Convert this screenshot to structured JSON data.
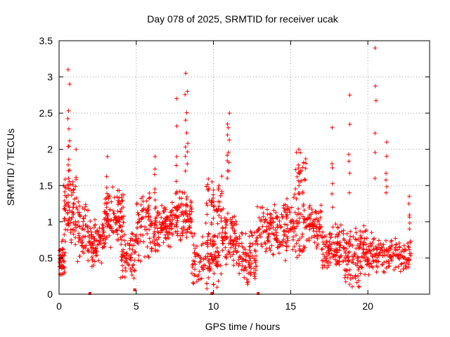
{
  "chart_data": {
    "type": "scatter",
    "title": "Day 078 of 2025, SRMTID for receiver ucak",
    "xlabel": "GPS time / hours",
    "ylabel": "SRMTID / TECUs",
    "xlim": [
      0,
      24
    ],
    "ylim": [
      0,
      3.5
    ],
    "xticks": [
      0,
      5,
      10,
      15,
      20
    ],
    "yticks": [
      0,
      0.5,
      1,
      1.5,
      2,
      2.5,
      3,
      3.5
    ],
    "xtick_labels": [
      "0",
      "5",
      "10",
      "15",
      "20"
    ],
    "ytick_labels": [
      "0",
      "0.5",
      "1",
      "1.5",
      "2",
      "2.5",
      "3",
      "3.5"
    ],
    "grid": true,
    "marker": "plus",
    "color": "#ff0000",
    "series": [
      {
        "name": "SRMTID",
        "description": "dense scatter of epoch values (approximate, generated)",
        "bands": [
          {
            "t0": 0.0,
            "t1": 0.4,
            "lo": 0.2,
            "hi": 0.8,
            "n": 45
          },
          {
            "t0": 0.3,
            "t1": 1.0,
            "lo": 0.6,
            "hi": 1.8,
            "n": 70
          },
          {
            "t0": 1.0,
            "t1": 2.0,
            "lo": 0.4,
            "hi": 1.3,
            "n": 70
          },
          {
            "t0": 2.0,
            "t1": 3.0,
            "lo": 0.3,
            "hi": 1.1,
            "n": 80
          },
          {
            "t0": 2.8,
            "t1": 4.2,
            "lo": 0.6,
            "hi": 1.5,
            "n": 110
          },
          {
            "t0": 4.0,
            "t1": 5.0,
            "lo": 0.2,
            "hi": 0.9,
            "n": 70
          },
          {
            "t0": 5.0,
            "t1": 6.5,
            "lo": 0.4,
            "hi": 1.5,
            "n": 110
          },
          {
            "t0": 6.5,
            "t1": 7.5,
            "lo": 0.6,
            "hi": 1.3,
            "n": 80
          },
          {
            "t0": 7.5,
            "t1": 8.6,
            "lo": 0.7,
            "hi": 1.5,
            "n": 90
          },
          {
            "t0": 8.6,
            "t1": 10.5,
            "lo": 0.05,
            "hi": 0.9,
            "n": 120
          },
          {
            "t0": 9.5,
            "t1": 10.6,
            "lo": 0.8,
            "hi": 1.7,
            "n": 50
          },
          {
            "t0": 10.5,
            "t1": 11.5,
            "lo": 0.3,
            "hi": 1.2,
            "n": 80
          },
          {
            "t0": 11.5,
            "t1": 12.8,
            "lo": 0.05,
            "hi": 0.9,
            "n": 90
          },
          {
            "t0": 12.8,
            "t1": 14.5,
            "lo": 0.5,
            "hi": 1.3,
            "n": 110
          },
          {
            "t0": 14.5,
            "t1": 16.0,
            "lo": 0.4,
            "hi": 1.4,
            "n": 100
          },
          {
            "t0": 15.2,
            "t1": 16.0,
            "lo": 1.3,
            "hi": 2.0,
            "n": 25
          },
          {
            "t0": 16.0,
            "t1": 17.0,
            "lo": 0.6,
            "hi": 1.3,
            "n": 70
          },
          {
            "t0": 17.0,
            "t1": 18.5,
            "lo": 0.3,
            "hi": 1.0,
            "n": 110
          },
          {
            "t0": 18.5,
            "t1": 19.5,
            "lo": 0.0,
            "hi": 1.0,
            "n": 80
          },
          {
            "t0": 19.5,
            "t1": 20.5,
            "lo": 0.2,
            "hi": 1.0,
            "n": 70
          },
          {
            "t0": 20.5,
            "t1": 22.8,
            "lo": 0.25,
            "hi": 0.8,
            "n": 130
          }
        ],
        "spikes": [
          {
            "t": 0.6,
            "lo": 1.5,
            "hi": 3.1
          },
          {
            "t": 0.65,
            "lo": 1.6,
            "hi": 2.9
          },
          {
            "t": 1.1,
            "lo": 1.2,
            "hi": 2.0
          },
          {
            "t": 3.1,
            "lo": 1.2,
            "hi": 1.9
          },
          {
            "t": 6.2,
            "lo": 1.3,
            "hi": 1.9
          },
          {
            "t": 7.6,
            "lo": 1.4,
            "hi": 2.7
          },
          {
            "t": 8.2,
            "lo": 1.7,
            "hi": 3.05
          },
          {
            "t": 8.3,
            "lo": 1.8,
            "hi": 2.8
          },
          {
            "t": 10.9,
            "lo": 1.6,
            "hi": 2.35
          },
          {
            "t": 11.0,
            "lo": 1.7,
            "hi": 2.5
          },
          {
            "t": 15.5,
            "lo": 1.5,
            "hi": 2.0
          },
          {
            "t": 17.7,
            "lo": 1.2,
            "hi": 2.3
          },
          {
            "t": 18.8,
            "lo": 1.4,
            "hi": 2.75
          },
          {
            "t": 20.5,
            "lo": 1.6,
            "hi": 3.4
          },
          {
            "t": 21.2,
            "lo": 1.4,
            "hi": 2.1
          },
          {
            "t": 22.7,
            "lo": 0.9,
            "hi": 1.35
          }
        ],
        "isolated_points": [
          {
            "x": 2.0,
            "y": 0.0
          },
          {
            "x": 12.9,
            "y": 0.0
          },
          {
            "x": 9.9,
            "y": 0.0
          },
          {
            "x": 4.9,
            "y": 0.05
          }
        ]
      }
    ]
  }
}
